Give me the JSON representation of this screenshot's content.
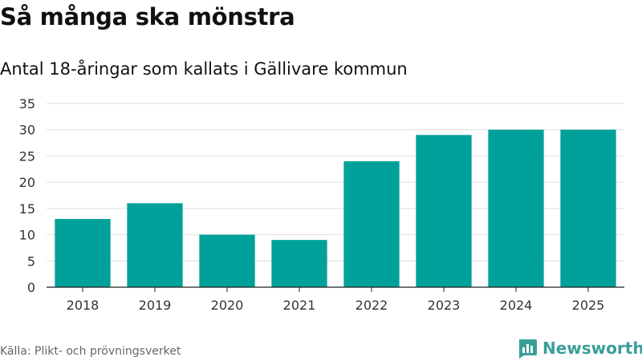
{
  "title": "Så många ska mönstra",
  "subtitle": "Antal 18-åringar som kallats i Gällivare kommun",
  "source": "Källa: Plikt- och prövningsverket",
  "brand": {
    "name": "Newsworthy",
    "icon": "bar-chart-logo-icon",
    "color": "#3a9e98"
  },
  "colors": {
    "bar": "#00a19a",
    "grid": "#dddddd",
    "axis": "#222222"
  },
  "chart_data": {
    "type": "bar",
    "title": "Så många ska mönstra",
    "subtitle": "Antal 18-åringar som kallats i Gällivare kommun",
    "xlabel": "",
    "ylabel": "",
    "categories": [
      "2018",
      "2019",
      "2020",
      "2021",
      "2022",
      "2023",
      "2024",
      "2025"
    ],
    "values": [
      13,
      16,
      10,
      9,
      24,
      29,
      30,
      30
    ],
    "ylim": [
      0,
      35
    ],
    "yticks": [
      0,
      5,
      10,
      15,
      20,
      25,
      30,
      35
    ],
    "grid": true,
    "legend": "none"
  }
}
